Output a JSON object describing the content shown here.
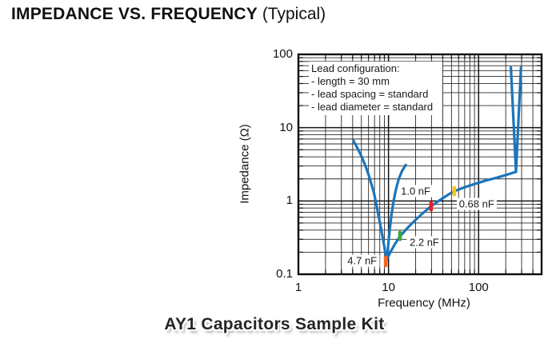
{
  "title": {
    "main": "IMPEDANCE VS. FREQUENCY",
    "suffix": " (Typical)"
  },
  "caption": "AY1 Capacitors Sample Kit",
  "chart_data": {
    "type": "line",
    "xlabel": "Frequency (MHz)",
    "ylabel": "Impedance (Ω)",
    "x_scale": "log",
    "y_scale": "log",
    "xlim": [
      1,
      500
    ],
    "ylim": [
      0.1,
      100
    ],
    "grid": "full log-log minor+major grid, black on white",
    "legend_position": "none",
    "x_ticks": [
      {
        "v": 1,
        "label": "1"
      },
      {
        "v": 10,
        "label": "10"
      },
      {
        "v": 100,
        "label": "100"
      }
    ],
    "y_ticks": [
      {
        "v": 0.1,
        "label": "0.1"
      },
      {
        "v": 1,
        "label": "1"
      },
      {
        "v": 10,
        "label": "10"
      },
      {
        "v": 100,
        "label": "100"
      }
    ],
    "line_color": "#1B75BC",
    "annotation_box": {
      "lines": [
        "Lead configuration:",
        "- length = 30 mm",
        "- lead spacing = standard",
        "- lead diameter = standard"
      ]
    },
    "series": [
      {
        "name": "capacitive-descending-branch",
        "points": [
          [
            4.1,
            6.6
          ],
          [
            4.5,
            5.3
          ],
          [
            5.0,
            4.1
          ],
          [
            5.5,
            3.1
          ],
          [
            6.0,
            2.3
          ],
          [
            6.5,
            1.65
          ],
          [
            6.9,
            1.28
          ],
          [
            7.4,
            0.85
          ],
          [
            7.8,
            0.6
          ],
          [
            8.4,
            0.38
          ],
          [
            9.0,
            0.235
          ],
          [
            9.3,
            0.175
          ],
          [
            9.5,
            0.155
          ]
        ]
      },
      {
        "name": "steep-inductive-branch",
        "points": [
          [
            9.6,
            0.16
          ],
          [
            9.9,
            0.24
          ],
          [
            10.3,
            0.4
          ],
          [
            10.8,
            0.65
          ],
          [
            11.4,
            1.0
          ],
          [
            12.1,
            1.45
          ],
          [
            13.0,
            2.0
          ],
          [
            14.1,
            2.55
          ],
          [
            15.5,
            3.1
          ]
        ]
      },
      {
        "name": "main-inductive-branch-with-spike",
        "points": [
          [
            9.7,
            0.165
          ],
          [
            10.5,
            0.2
          ],
          [
            11.6,
            0.25
          ],
          [
            13.4,
            0.33
          ],
          [
            16,
            0.42
          ],
          [
            19,
            0.52
          ],
          [
            23,
            0.65
          ],
          [
            29.7,
            0.85
          ],
          [
            37,
            1.02
          ],
          [
            46,
            1.22
          ],
          [
            53.7,
            1.36
          ],
          [
            68,
            1.52
          ],
          [
            90,
            1.7
          ],
          [
            120,
            1.9
          ],
          [
            160,
            2.08
          ],
          [
            210,
            2.3
          ],
          [
            260,
            2.5
          ],
          [
            295,
            66
          ]
        ]
      },
      {
        "name": "spike-left-edge",
        "points": [
          [
            228,
            66
          ],
          [
            260,
            2.5
          ]
        ]
      }
    ],
    "markers": [
      {
        "label": "4.7 nF",
        "x": 9.3,
        "y": 0.15,
        "color": "#F26522",
        "label_pos": [
          5.1,
          0.155
        ]
      },
      {
        "label": "2.2 nF",
        "x": 13.4,
        "y": 0.334,
        "color": "#3BA83C",
        "label_pos": [
          25,
          0.27
        ]
      },
      {
        "label": "1.0 nF",
        "x": 29.7,
        "y": 0.845,
        "color": "#E81E25",
        "label_pos": [
          20,
          1.35
        ]
      },
      {
        "label": "0.68 nF",
        "x": 53.7,
        "y": 1.36,
        "color": "#FFC20E",
        "label_pos": [
          95,
          0.92
        ]
      }
    ]
  }
}
